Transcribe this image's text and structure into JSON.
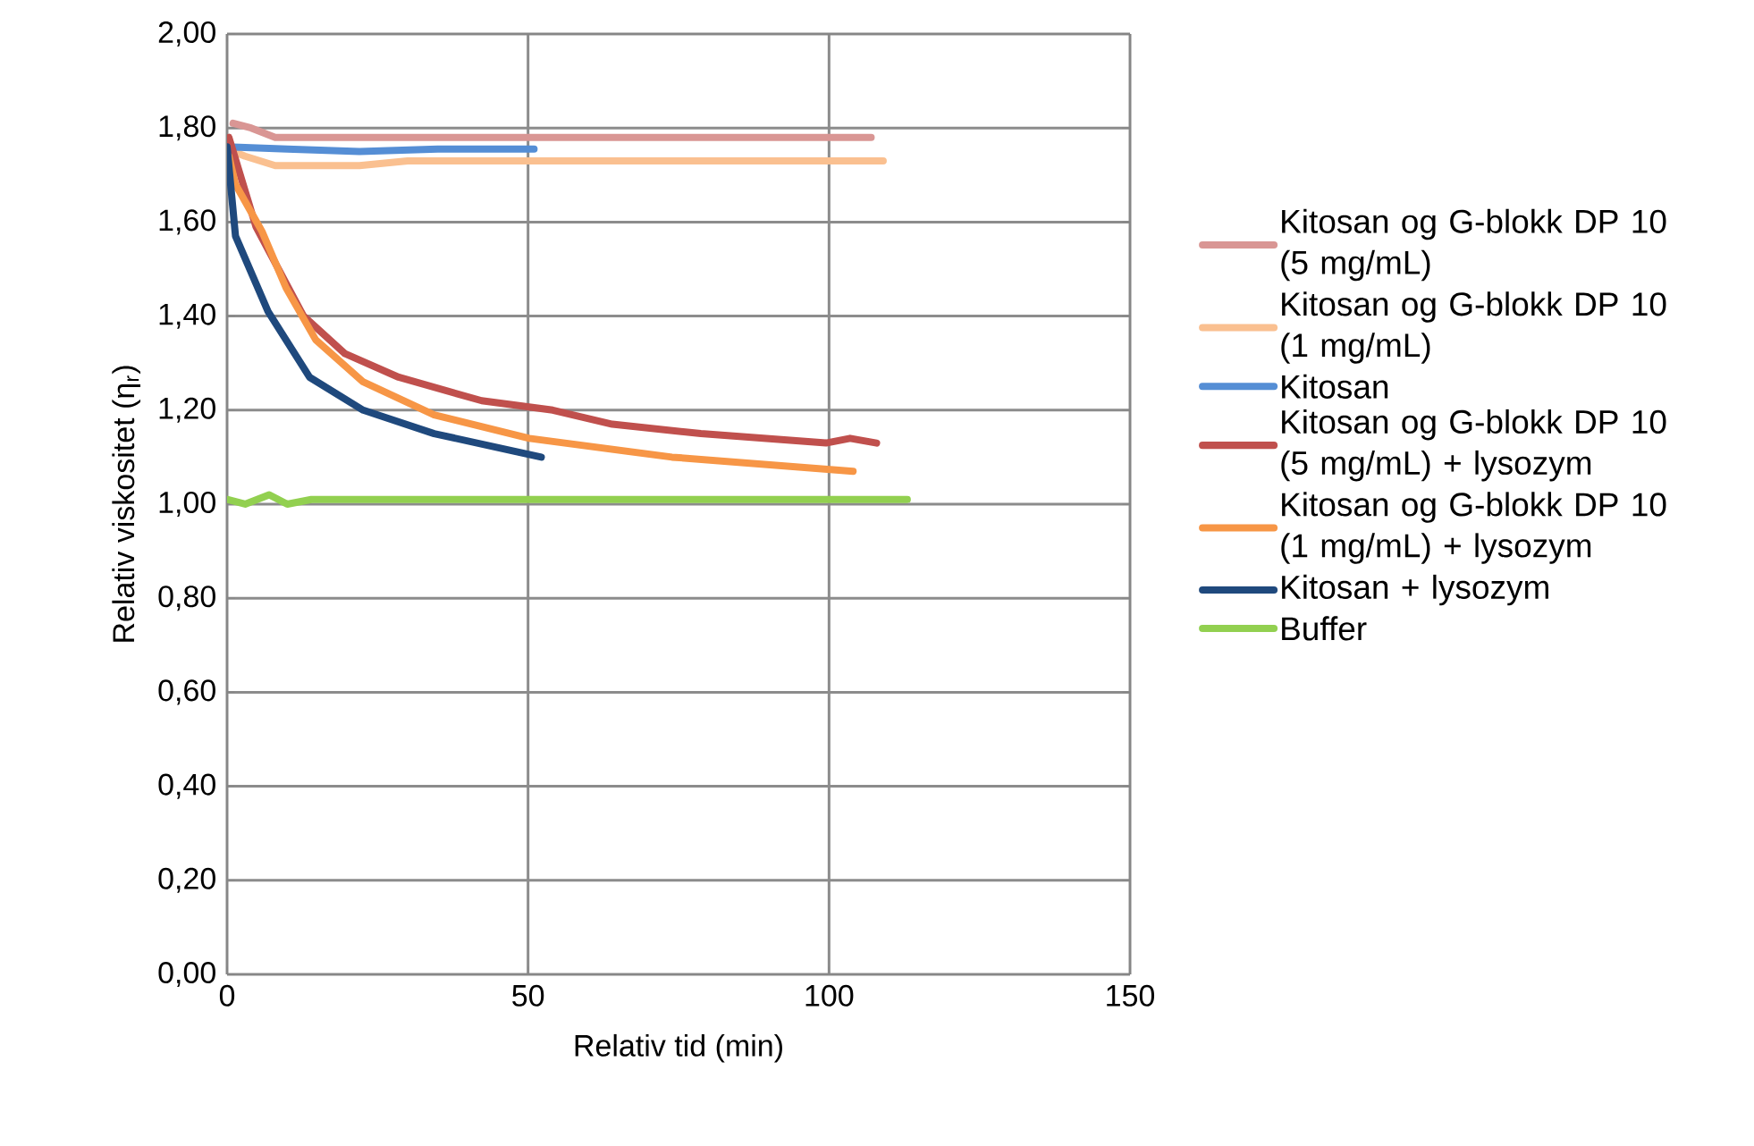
{
  "chart_data": {
    "type": "line",
    "xlabel": "Relativ tid (min)",
    "ylabel": "Relativ viskositet (η$_{r}$)",
    "xlim": [
      0,
      150
    ],
    "xticks": [
      0,
      50,
      100,
      150
    ],
    "ylim": [
      0,
      2
    ],
    "yticks": [
      {
        "value": 0,
        "label": "0,00"
      },
      {
        "value": 0.2,
        "label": "0,20"
      },
      {
        "value": 0.4,
        "label": "0,40"
      },
      {
        "value": 0.6,
        "label": "0,60"
      },
      {
        "value": 0.8,
        "label": "0,80"
      },
      {
        "value": 1,
        "label": "1,00"
      },
      {
        "value": 1.2,
        "label": "1,20"
      },
      {
        "value": 1.4,
        "label": "1,40"
      },
      {
        "value": 1.6,
        "label": "1,60"
      },
      {
        "value": 1.8,
        "label": "1,80"
      },
      {
        "value": 2,
        "label": "2,00"
      }
    ],
    "grid": true,
    "legend": "right",
    "marker": "none",
    "line_style": "solid",
    "series": [
      {
        "name": "Kitosan og G-blokk DP 10 (5 mg/mL)",
        "color": "#d99694",
        "x": [
          1,
          4,
          8,
          30,
          107
        ],
        "values": [
          1.81,
          1.8,
          1.78,
          1.78,
          1.78
        ]
      },
      {
        "name": "Kitosan og G-blokk DP 10 (1 mg/mL)",
        "color": "#fac090",
        "x": [
          1,
          3,
          8,
          22,
          30,
          109
        ],
        "values": [
          1.75,
          1.74,
          1.72,
          1.72,
          1.73,
          1.73
        ]
      },
      {
        "name": "Kitosan",
        "color": "#558ed5",
        "x": [
          0,
          10,
          22,
          35,
          51
        ],
        "values": [
          1.76,
          1.755,
          1.75,
          1.755,
          1.755
        ]
      },
      {
        "name": "Kitosan og G-blokk DP 10 (5 mg/mL) + lysozym",
        "color": "#c0504d",
        "x": [
          0.3,
          4.8,
          12.7,
          19.6,
          28.5,
          42.3,
          54.1,
          64,
          78.7,
          99.5,
          103.5,
          107.9
        ],
        "values": [
          1.78,
          1.59,
          1.4,
          1.32,
          1.27,
          1.22,
          1.2,
          1.17,
          1.15,
          1.13,
          1.14,
          1.13
        ]
      },
      {
        "name": "Kitosan og G-blokk DP 10 (1 mg/mL) + lysozym",
        "color": "#f79646",
        "x": [
          0.3,
          1.4,
          5.8,
          9.8,
          14.7,
          22.6,
          34.4,
          50.2,
          73.9,
          104
        ],
        "values": [
          1.74,
          1.68,
          1.58,
          1.46,
          1.35,
          1.26,
          1.19,
          1.14,
          1.1,
          1.07
        ]
      },
      {
        "name": "Kitosan + lysozym",
        "color": "#1f497d",
        "x": [
          0,
          1.4,
          6.8,
          13.7,
          22.6,
          34.4,
          52.2
        ],
        "values": [
          1.76,
          1.57,
          1.41,
          1.27,
          1.2,
          1.15,
          1.1
        ]
      },
      {
        "name": "Buffer",
        "color": "#92d050",
        "x": [
          0,
          3,
          7,
          10,
          14,
          113
        ],
        "values": [
          1.01,
          1.0,
          1.02,
          1.0,
          1.01,
          1.01
        ]
      }
    ]
  }
}
